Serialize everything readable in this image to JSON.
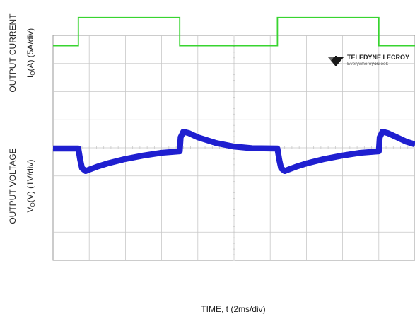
{
  "chart_data": {
    "type": "line",
    "title": "",
    "ylabels": {
      "current_title": "OUTPUT CURRENT",
      "current_units": "(A) (5A/div)",
      "voltage_title": "OUTPUT VOLTAGE",
      "voltage_units": "(V) (1V/div)"
    },
    "xlabel": "TIME, t (2ms/div)",
    "x_divisions": 10,
    "y_divisions": 8,
    "grid": true,
    "xlim": [
      0,
      20
    ],
    "series": [
      {
        "name": "",
        "color": "#38d430",
        "x": [
          0.0,
          1.4,
          1.4,
          7.0,
          7.0,
          12.4,
          12.4,
          18.0,
          18.0,
          20.0
        ],
        "y_div": [
          2.3,
          2.3,
          3.3,
          3.3,
          2.3,
          2.3,
          3.3,
          3.3,
          2.3,
          2.3
        ]
      },
      {
        "name": "",
        "color": "#1f1fd0",
        "x": [
          0.0,
          1.0,
          1.4,
          1.5,
          1.6,
          1.8,
          2.0,
          2.5,
          3.0,
          4.0,
          5.0,
          6.0,
          7.0,
          7.05,
          7.2,
          7.5,
          8.0,
          9.0,
          10.0,
          11.0,
          12.4,
          12.5,
          12.6,
          12.8,
          13.0,
          13.5,
          14.0,
          15.0,
          16.0,
          17.0,
          18.0,
          18.05,
          18.2,
          18.5,
          19.0,
          19.5,
          20.0
        ],
        "y_div": [
          0.05,
          0.05,
          0.05,
          -0.35,
          -0.65,
          -0.75,
          -0.7,
          -0.58,
          -0.48,
          -0.32,
          -0.2,
          -0.1,
          -0.05,
          0.45,
          0.65,
          0.6,
          0.45,
          0.25,
          0.12,
          0.06,
          0.05,
          -0.35,
          -0.65,
          -0.75,
          -0.7,
          -0.58,
          -0.48,
          -0.32,
          -0.2,
          -0.1,
          -0.05,
          0.45,
          0.65,
          0.6,
          0.45,
          0.3,
          0.2
        ],
        "band_halfwidth_div": 0.08
      }
    ]
  },
  "labels": {
    "current_title": "OUTPUT CURRENT",
    "current_units": "(A) (5A/div)",
    "voltage_title": "OUTPUT VOLTAGE",
    "voltage_units": "(V) (1V/div)",
    "xlabel": "TIME, t (2ms/div)"
  },
  "brand": {
    "name": "TELEDYNE LECROY",
    "slogan_pre": "Everywhere",
    "slogan_bold": "you",
    "slogan_post": "look"
  },
  "colors": {
    "current_trace": "#38d430",
    "voltage_trace": "#1f1fd0",
    "grid": "#c8c8c8",
    "frame": "#9a9a9a"
  }
}
